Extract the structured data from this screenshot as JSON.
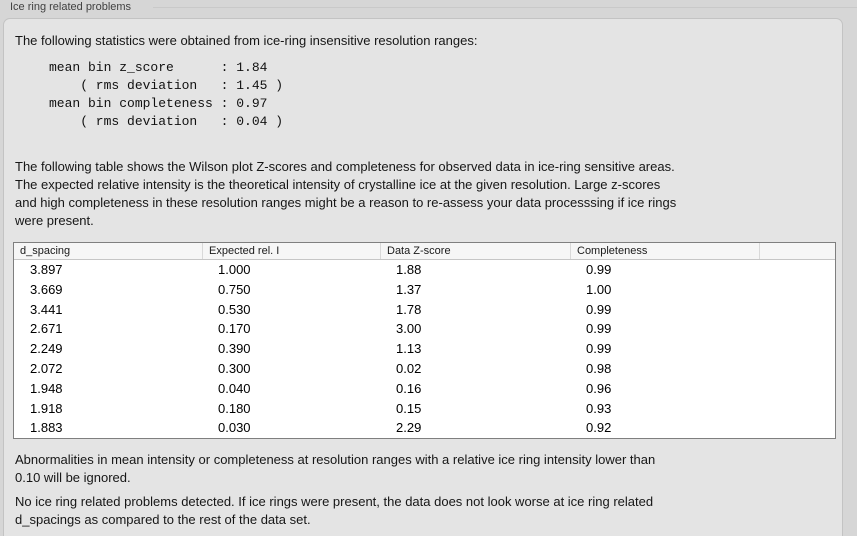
{
  "colors": {
    "window_bg": "#d6d6d6",
    "panel_bg": "#e4e4e4",
    "panel_border": "#c3c3c3",
    "table_border": "#7f7f7f",
    "table_header_bg": "#f6f6f6",
    "text": "#161616"
  },
  "section": {
    "label": "Ice ring related problems"
  },
  "panel": {
    "intro": "The following statistics were obtained from ice-ring insensitive resolution ranges:",
    "stats_block": "mean bin z_score      : 1.84\n    ( rms deviation   : 1.45 )\nmean bin completeness : 0.97\n    ( rms deviation   : 0.04 )",
    "table_description": "The following table shows the Wilson plot Z-scores and completeness for observed data in ice-ring sensitive areas.\nThe expected relative intensity is the theoretical intensity of crystalline ice at the given resolution. Large z-scores\nand high completeness in these resolution ranges might be a reason to re-assess your data processsing if ice rings\nwere present.",
    "ignore_note": "Abnormalities in mean intensity or completeness at resolution ranges with a relative ice ring intensity lower than\n0.10 will be ignored.",
    "conclusion": "No ice ring related problems detected. If ice rings were present, the data does not look worse at ice ring related\nd_spacings as compared to the rest of the data set."
  },
  "table": {
    "columns": [
      "d_spacing",
      "Expected rel. I",
      "Data Z-score",
      "Completeness",
      ""
    ],
    "rows": [
      [
        "3.897",
        "1.000",
        "1.88",
        "0.99"
      ],
      [
        "3.669",
        "0.750",
        "1.37",
        "1.00"
      ],
      [
        "3.441",
        "0.530",
        "1.78",
        "0.99"
      ],
      [
        "2.671",
        "0.170",
        "3.00",
        "0.99"
      ],
      [
        "2.249",
        "0.390",
        "1.13",
        "0.99"
      ],
      [
        "2.072",
        "0.300",
        "0.02",
        "0.98"
      ],
      [
        "1.948",
        "0.040",
        "0.16",
        "0.96"
      ],
      [
        "1.918",
        "0.180",
        "0.15",
        "0.93"
      ],
      [
        "1.883",
        "0.030",
        "2.29",
        "0.92"
      ]
    ]
  }
}
